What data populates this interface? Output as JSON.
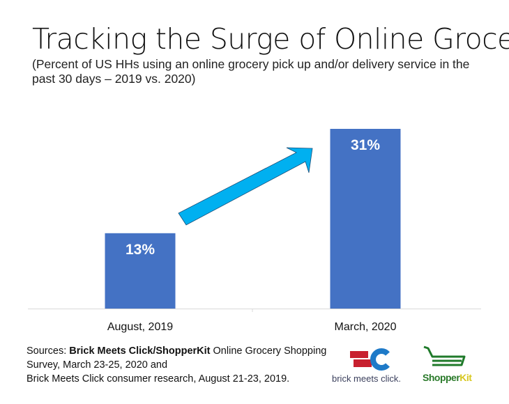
{
  "title": "Tracking the Surge of Online Grocery",
  "subtitle": "(Percent of US HHs using an online grocery pick up and/or delivery service in the past 30 days – 2019 vs. 2020)",
  "chart_data": {
    "type": "bar",
    "title": "Tracking the Surge of Online Grocery",
    "categories": [
      "August, 2019",
      "March, 2020"
    ],
    "values": [
      13,
      31
    ],
    "data_labels": [
      "13%",
      "31%"
    ],
    "ylim": [
      0,
      31
    ],
    "grid": false,
    "bar_color": "#4472c4",
    "arrow_color": "#00b0f0",
    "annotation": "upward arrow from 2019 bar to 2020 bar"
  },
  "sources": {
    "prefix": "Sources: ",
    "bold1": "Brick Meets Click/ShopperKit",
    "text1": " Online Grocery Shopping Survey, March 23-25, 2020 and",
    "text2": "Brick Meets Click consumer research, August 21-23, 2019."
  },
  "logos": {
    "brick_meets_click": "brick meets click.",
    "shopperkit_a": "Shopper",
    "shopperkit_b": "Kit"
  }
}
